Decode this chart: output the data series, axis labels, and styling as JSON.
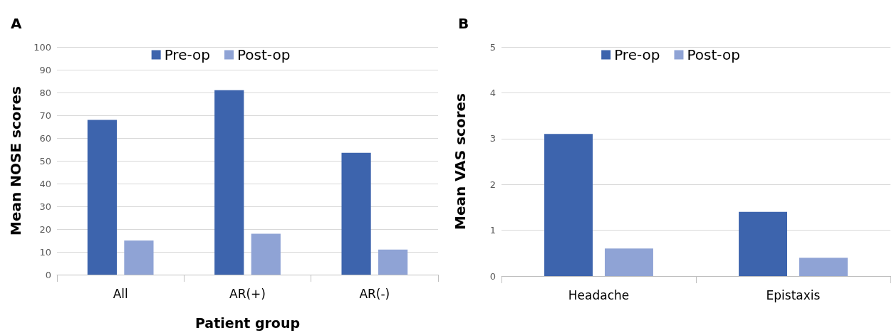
{
  "chart_data": [
    {
      "type": "bar",
      "title": "A",
      "categories": [
        "All",
        "AR(+)",
        "AR(-)"
      ],
      "xlabel": "Patient group",
      "ylabel": "Mean NOSE scores",
      "series": [
        {
          "name": "Pre-op",
          "color": "#3d64ad",
          "values": [
            68,
            81,
            53.5
          ]
        },
        {
          "name": "Post-op",
          "color": "#8fa3d5",
          "values": [
            15,
            18,
            11
          ]
        }
      ],
      "ylim": [
        0,
        100
      ],
      "yticks": [
        0,
        10,
        20,
        30,
        40,
        50,
        60,
        70,
        80,
        90,
        100
      ],
      "grid": "y",
      "legend": "top"
    },
    {
      "type": "bar",
      "title": "B",
      "categories": [
        "Headache",
        "Epistaxis"
      ],
      "ylabel": "Mean VAS scores",
      "series": [
        {
          "name": "Pre-op",
          "color": "#3d64ad",
          "values": [
            3.1,
            1.4
          ]
        },
        {
          "name": "Post-op",
          "color": "#8fa3d5",
          "values": [
            0.6,
            0.4
          ]
        }
      ],
      "ylim": [
        0,
        5
      ],
      "yticks": [
        0,
        1,
        2,
        3,
        4,
        5
      ],
      "grid": "y",
      "legend": "top"
    }
  ]
}
